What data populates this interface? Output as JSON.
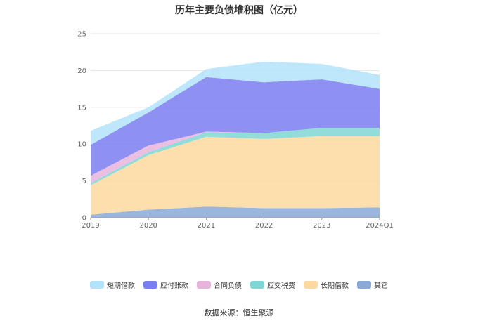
{
  "title": "历年主要负债堆积图（亿元）",
  "source": "数据来源：恒生聚源",
  "chart_data": {
    "type": "area",
    "stacked": true,
    "categories": [
      "2019",
      "2020",
      "2021",
      "2022",
      "2023",
      "2024Q1"
    ],
    "ylim": [
      0,
      25
    ],
    "yticks": [
      0,
      5,
      10,
      15,
      20,
      25
    ],
    "grid": true,
    "legend_position": "bottom",
    "series": [
      {
        "name": "其它",
        "color": "#8aa9d8",
        "values": [
          0.4,
          1.1,
          1.5,
          1.3,
          1.3,
          1.4
        ]
      },
      {
        "name": "长期借款",
        "color": "#fdd9a0",
        "values": [
          4.0,
          7.4,
          9.5,
          9.4,
          9.8,
          9.7
        ]
      },
      {
        "name": "应交税费",
        "color": "#7fd6d4",
        "values": [
          0.3,
          0.4,
          0.6,
          0.8,
          1.1,
          1.1
        ]
      },
      {
        "name": "合同负债",
        "color": "#e7b4dc",
        "values": [
          1.0,
          0.9,
          0.1,
          0.0,
          0.0,
          0.0
        ]
      },
      {
        "name": "应付账款",
        "color": "#7b7ef0",
        "values": [
          4.2,
          4.5,
          7.4,
          6.9,
          6.6,
          5.3
        ]
      },
      {
        "name": "短期借款",
        "color": "#b3e3fb",
        "values": [
          1.9,
          0.7,
          1.1,
          2.8,
          2.1,
          1.9
        ]
      }
    ],
    "legend_order": [
      "短期借款",
      "应付账款",
      "合同负债",
      "应交税费",
      "长期借款",
      "其它"
    ]
  }
}
